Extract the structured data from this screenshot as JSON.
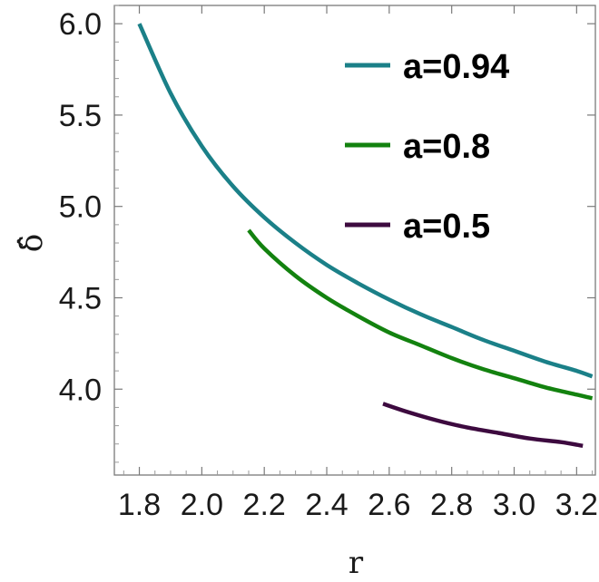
{
  "chart_data": {
    "type": "line",
    "xlabel": "r",
    "ylabel": "δ̂",
    "xlim": [
      1.72,
      3.26
    ],
    "ylim": [
      3.53,
      6.1
    ],
    "xticks": [
      "1.8",
      "2.0",
      "2.2",
      "2.4",
      "2.6",
      "2.8",
      "3.0",
      "3.2"
    ],
    "yticks": [
      "4.0",
      "4.5",
      "5.0",
      "5.5",
      "6.0"
    ],
    "grid": false,
    "legend_position": "top-right",
    "series": [
      {
        "name": "a=0.94",
        "color": "#1b8088",
        "x": [
          1.8,
          1.9,
          2.0,
          2.1,
          2.2,
          2.3,
          2.4,
          2.5,
          2.6,
          2.7,
          2.8,
          2.9,
          3.0,
          3.1,
          3.2,
          3.25
        ],
        "y": [
          6.0,
          5.62,
          5.33,
          5.11,
          4.94,
          4.8,
          4.68,
          4.58,
          4.49,
          4.41,
          4.34,
          4.27,
          4.21,
          4.15,
          4.1,
          4.07
        ]
      },
      {
        "name": "a=0.8",
        "color": "#13820f",
        "x": [
          2.15,
          2.2,
          2.3,
          2.4,
          2.5,
          2.6,
          2.7,
          2.8,
          2.9,
          3.0,
          3.1,
          3.2,
          3.25
        ],
        "y": [
          4.87,
          4.77,
          4.62,
          4.5,
          4.4,
          4.31,
          4.24,
          4.17,
          4.11,
          4.06,
          4.01,
          3.97,
          3.95
        ]
      },
      {
        "name": "a=0.5",
        "color": "#3d0a3f",
        "x": [
          2.58,
          2.65,
          2.75,
          2.85,
          2.95,
          3.05,
          3.15,
          3.22
        ],
        "y": [
          3.92,
          3.88,
          3.83,
          3.79,
          3.76,
          3.73,
          3.71,
          3.69
        ]
      }
    ]
  }
}
